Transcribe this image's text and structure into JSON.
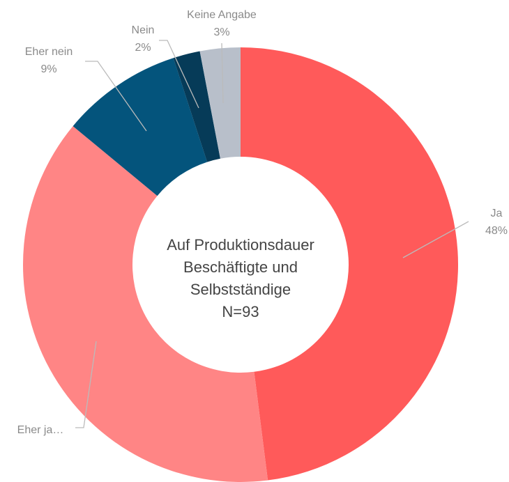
{
  "chart_data": {
    "type": "donut",
    "categories": [
      "Ja",
      "Eher ja…",
      "Eher nein",
      "Nein",
      "Keine Angabe"
    ],
    "values": [
      48,
      38,
      9,
      2,
      3
    ],
    "value_labels": [
      "48%",
      null,
      "9%",
      "2%",
      "3%"
    ],
    "colors": [
      "#ff5a5a",
      "#ff8585",
      "#04547c",
      "#063b58",
      "#b8bfca"
    ],
    "center_text": [
      "Auf Produktionsdauer",
      "Beschäftigte und",
      "Selbstständige",
      "N=93"
    ]
  }
}
